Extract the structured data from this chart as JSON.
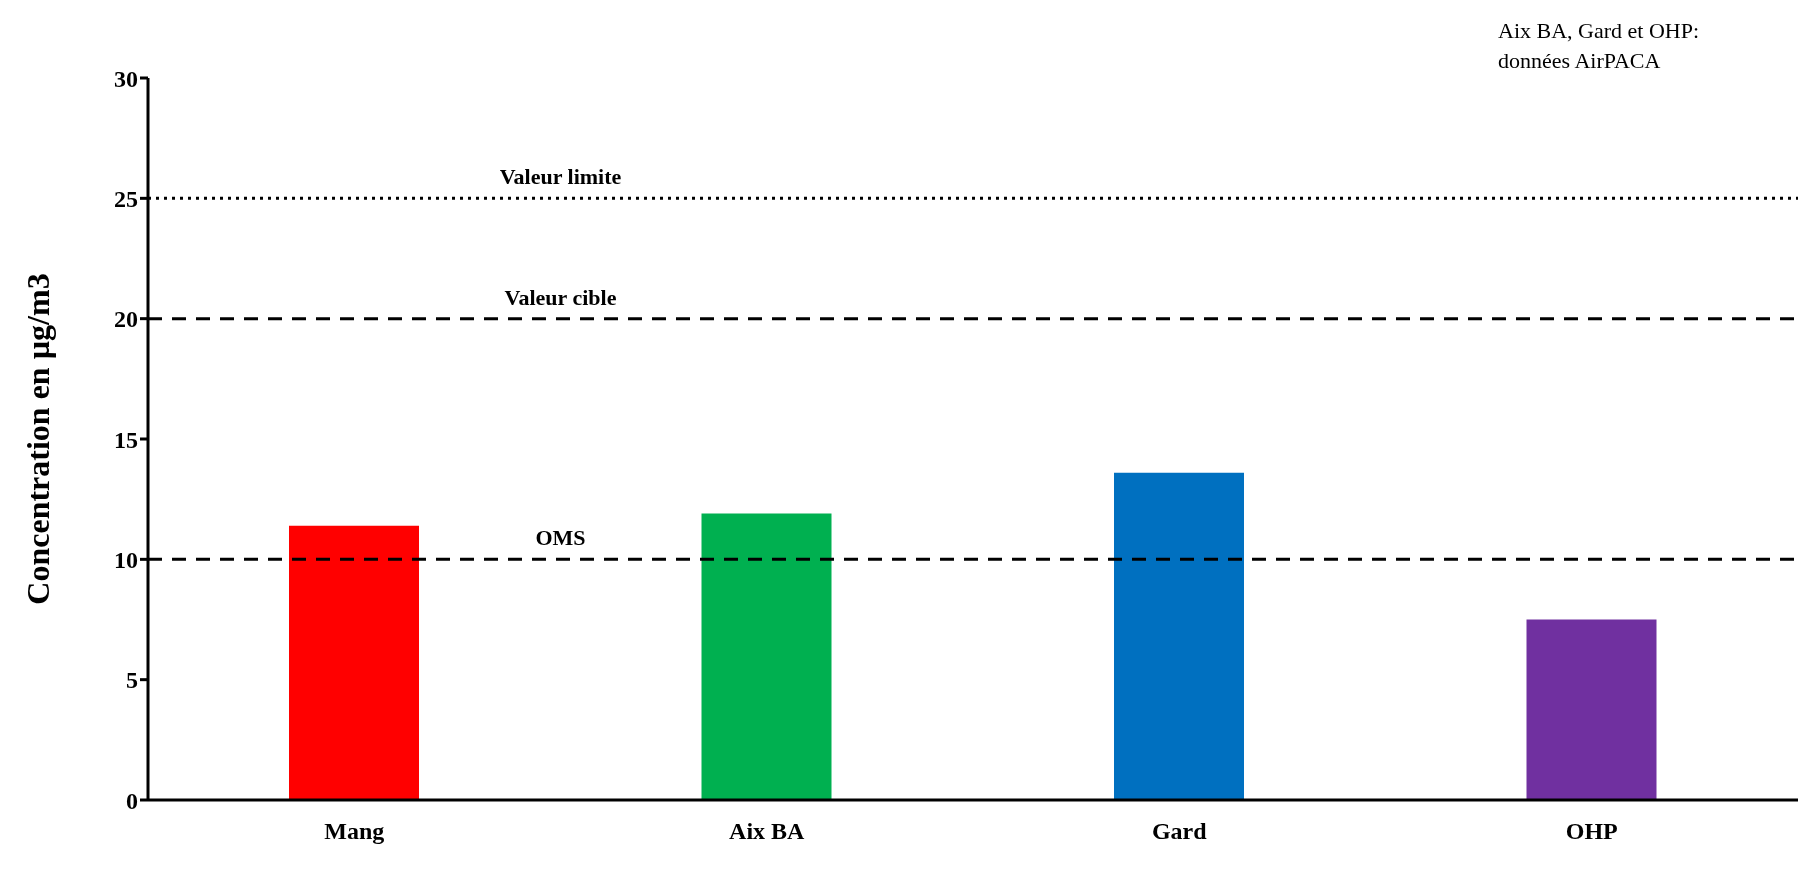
{
  "chart_data": {
    "type": "bar",
    "ylabel": "Concentration en µg/m3",
    "categories": [
      "Mang",
      "Aix BA",
      "Gard",
      "OHP"
    ],
    "values": [
      11.4,
      11.9,
      13.6,
      7.5
    ],
    "colors": [
      "#ff0000",
      "#00b050",
      "#0070c0",
      "#7030a0"
    ],
    "ylim": [
      0,
      30
    ],
    "yticks": [
      0,
      5,
      10,
      15,
      20,
      25,
      30
    ],
    "grid": false,
    "legend": false,
    "ref_lines": [
      {
        "axis": "y",
        "value": 25,
        "label": "Valeur limite",
        "color": "#000000",
        "line_style": "dotted"
      },
      {
        "axis": "y",
        "value": 20,
        "label": "Valeur cible",
        "color": "#000000",
        "line_style": "dashed"
      },
      {
        "axis": "y",
        "value": 10,
        "label": "OMS",
        "color": "#000000",
        "line_style": "dashed"
      }
    ],
    "annotations": [
      "Aix BA, Gard et OHP: données AirPACA"
    ]
  }
}
